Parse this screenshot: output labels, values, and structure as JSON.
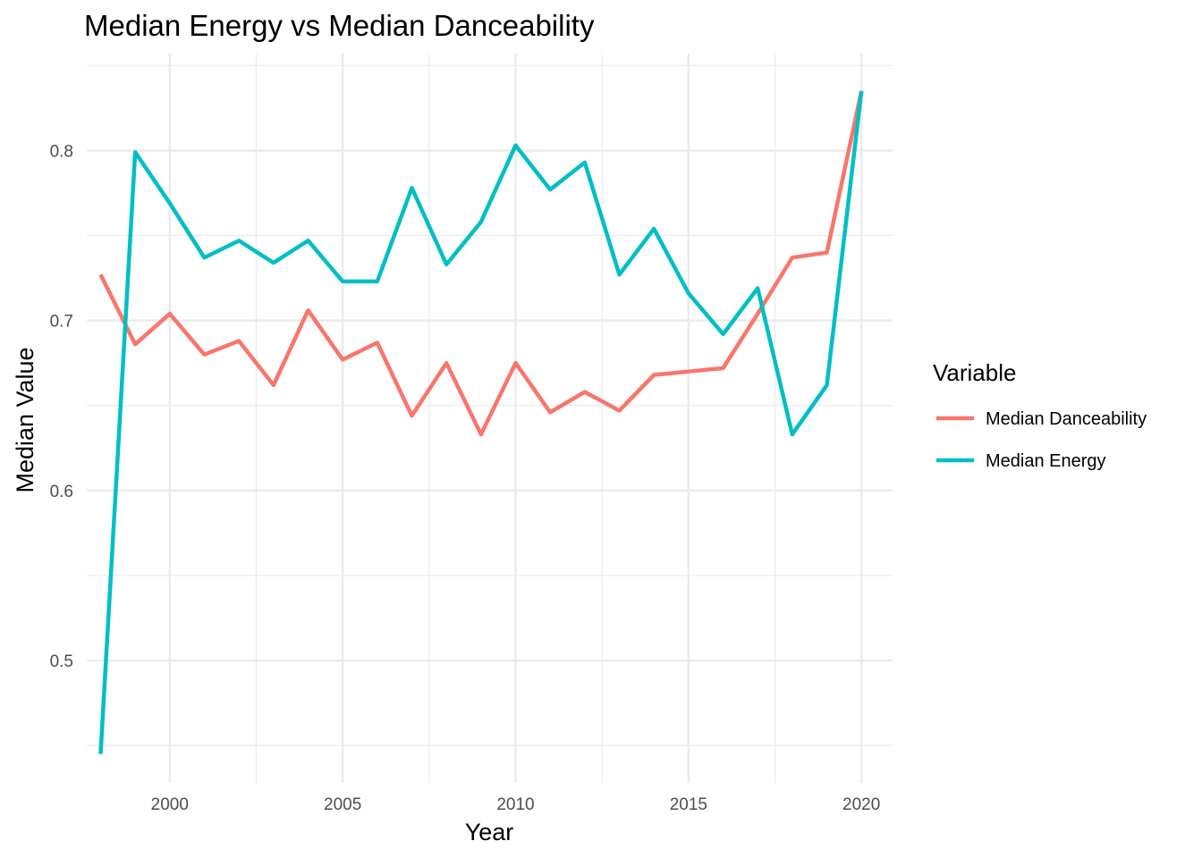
{
  "chart_data": {
    "type": "line",
    "title": "Median Energy vs Median Danceability",
    "xlabel": "Year",
    "ylabel": "Median Value",
    "xlim": [
      1997.6,
      2020.9
    ],
    "ylim": [
      0.428,
      0.857
    ],
    "x_ticks": [
      2000,
      2005,
      2010,
      2015,
      2020
    ],
    "y_ticks": [
      0.5,
      0.6,
      0.7,
      0.8
    ],
    "x_tick_labels": [
      "2000",
      "2005",
      "2010",
      "2015",
      "2020"
    ],
    "y_tick_labels": [
      "0.5",
      "0.6",
      "0.7",
      "0.8"
    ],
    "grid": true,
    "legend": {
      "title": "Variable",
      "placement": "right"
    },
    "x": [
      1998,
      1999,
      2000,
      2001,
      2002,
      2003,
      2004,
      2005,
      2006,
      2007,
      2008,
      2009,
      2010,
      2011,
      2012,
      2013,
      2014,
      2015,
      2016,
      2017,
      2018,
      2019,
      2020
    ],
    "series": [
      {
        "name": "Median Danceability",
        "color": "#f8766d",
        "values": [
          0.727,
          0.686,
          0.704,
          0.68,
          0.688,
          0.662,
          0.706,
          0.677,
          0.687,
          0.644,
          0.675,
          0.633,
          0.675,
          0.646,
          0.658,
          0.647,
          0.668,
          0.67,
          0.672,
          0.704,
          0.737,
          0.74,
          0.835
        ]
      },
      {
        "name": "Median Energy",
        "color": "#00bfc4",
        "values": [
          0.445,
          0.799,
          0.769,
          0.737,
          0.747,
          0.734,
          0.747,
          0.723,
          0.723,
          0.778,
          0.733,
          0.758,
          0.803,
          0.777,
          0.793,
          0.727,
          0.754,
          0.716,
          0.692,
          0.719,
          0.633,
          0.662,
          0.835
        ]
      }
    ]
  }
}
